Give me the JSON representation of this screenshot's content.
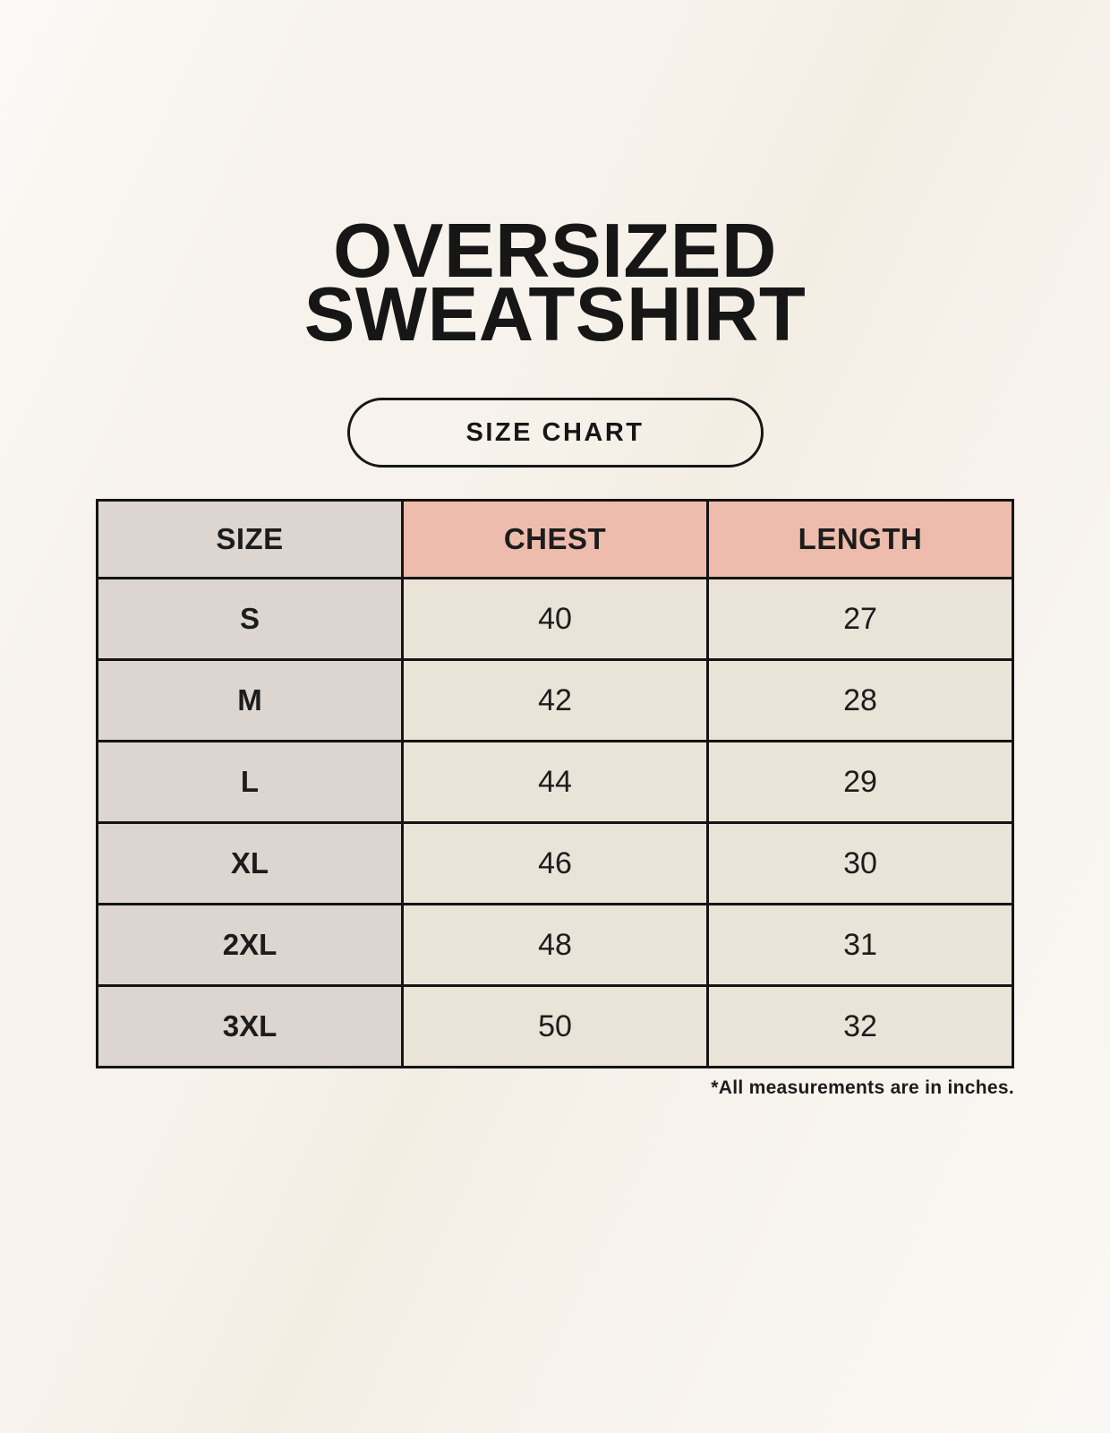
{
  "page": {
    "background_color": "#f7f3ec",
    "text_color": "#1c1c1c"
  },
  "header": {
    "title_line1": "OVERSIZED",
    "title_line2": "SWEATSHIRT",
    "badge_label": "SIZE CHART"
  },
  "table": {
    "headers": [
      "SIZE",
      "CHEST",
      "LENGTH"
    ],
    "rows": [
      {
        "size": "S",
        "chest": "40",
        "length": "27"
      },
      {
        "size": "M",
        "chest": "42",
        "length": "28"
      },
      {
        "size": "L",
        "chest": "44",
        "length": "29"
      },
      {
        "size": "XL",
        "chest": "46",
        "length": "30"
      },
      {
        "size": "2XL",
        "chest": "48",
        "length": "31"
      },
      {
        "size": "3XL",
        "chest": "50",
        "length": "32"
      }
    ],
    "footnote": "*All measurements are in inches.",
    "colors": {
      "size_header_bg": "#ddd6d0",
      "measure_header_bg": "#edbcad",
      "size_cell_bg": "#ddd6d0",
      "value_cell_bg": "#eae3d8",
      "border": "#141414"
    }
  },
  "chart_data": {
    "type": "table",
    "title": "OVERSIZED SWEATSHIRT",
    "columns": [
      "SIZE",
      "CHEST",
      "LENGTH"
    ],
    "rows": [
      [
        "S",
        40,
        27
      ],
      [
        "M",
        42,
        28
      ],
      [
        "L",
        44,
        29
      ],
      [
        "XL",
        46,
        30
      ],
      [
        "2XL",
        48,
        31
      ],
      [
        "3XL",
        50,
        32
      ]
    ],
    "units": "inches",
    "footnote": "*All measurements are in inches."
  }
}
